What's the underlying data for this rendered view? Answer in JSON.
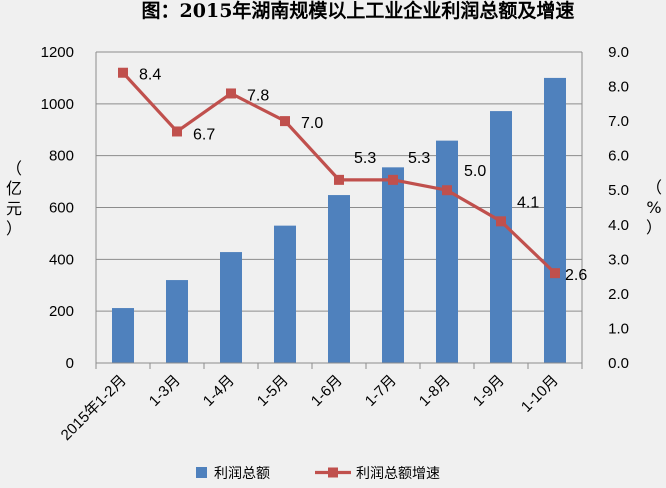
{
  "chart_data": {
    "type": "bar+line",
    "title": "图：2015年湖南规模以上工业企业利润总额及增速",
    "categories": [
      "2015年1-2月",
      "1-3月",
      "1-4月",
      "1-5月",
      "1-6月",
      "1-7月",
      "1-8月",
      "1-9月",
      "1-10月"
    ],
    "series": [
      {
        "name": "利润总额",
        "type": "bar",
        "axis": "left",
        "color": "#4f81bd",
        "values": [
          212,
          320,
          428,
          530,
          648,
          755,
          858,
          972,
          1100
        ]
      },
      {
        "name": "利润总额增速",
        "type": "line",
        "axis": "right",
        "color": "#c0504d",
        "values": [
          8.4,
          6.7,
          7.8,
          7.0,
          5.3,
          5.3,
          5.0,
          4.1,
          2.6
        ],
        "labels": [
          "8.4",
          "6.7",
          "7.8",
          "7.0",
          "5.3",
          "5.3",
          "5.0",
          "4.1",
          "2.6"
        ]
      }
    ],
    "left_axis": {
      "label_chars": [
        "（",
        "亿",
        "元",
        "）"
      ],
      "ylim": [
        0,
        1200
      ],
      "ticks": [
        "0",
        "200",
        "400",
        "600",
        "800",
        "1000",
        "1200"
      ]
    },
    "right_axis": {
      "label_chars": [
        "（",
        "%",
        "）"
      ],
      "ylim": [
        0,
        9
      ],
      "ticks": [
        "0.0",
        "1.0",
        "2.0",
        "3.0",
        "4.0",
        "5.0",
        "6.0",
        "7.0",
        "8.0",
        "9.0"
      ]
    },
    "grid": true,
    "legend": "bottom"
  }
}
